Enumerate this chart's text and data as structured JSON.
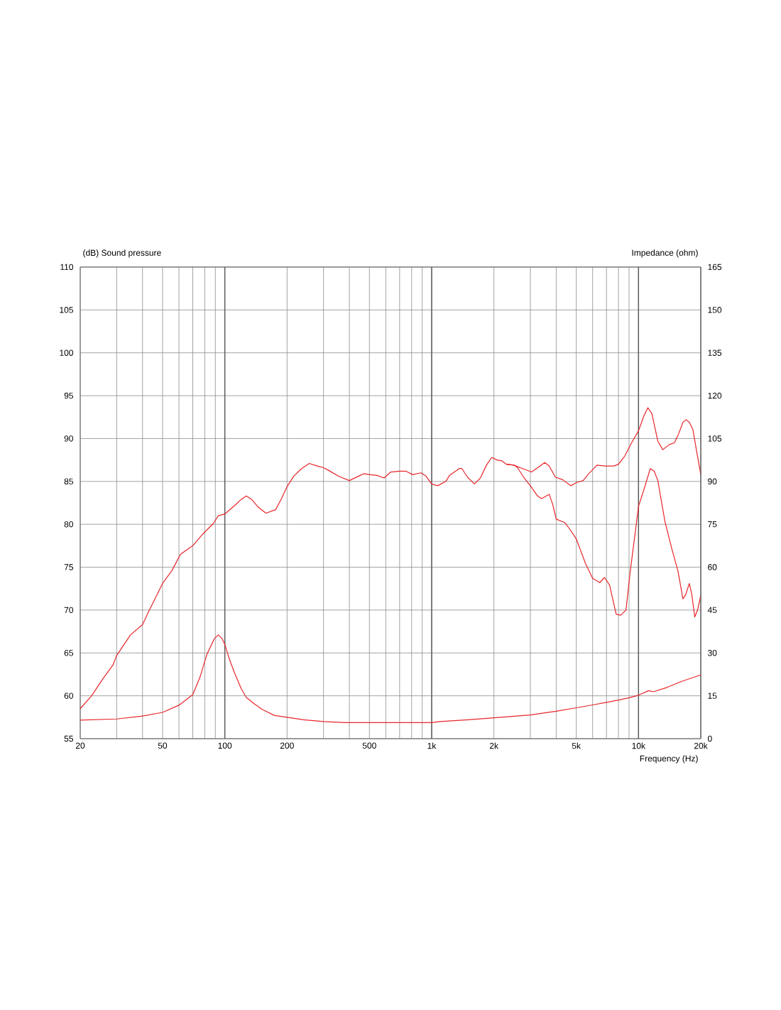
{
  "chart_data": {
    "type": "line",
    "xlabel": "Frequency (Hz)",
    "ylabel": "(dB) Sound pressure",
    "y2label": "Impedance (ohm)",
    "log": "x",
    "grid": true,
    "xlim": [
      20,
      20000
    ],
    "xticks": [
      20,
      {
        "value": 30,
        "label": null
      },
      {
        "value": 40,
        "label": null
      },
      50,
      {
        "value": 60,
        "label": null
      },
      {
        "value": 70,
        "label": null
      },
      {
        "value": 80,
        "label": null
      },
      {
        "value": 90,
        "label": null
      },
      100,
      200,
      {
        "value": 300,
        "label": null
      },
      {
        "value": 400,
        "label": null
      },
      500,
      {
        "value": 600,
        "label": null
      },
      {
        "value": 700,
        "label": null
      },
      {
        "value": 800,
        "label": null
      },
      {
        "value": 900,
        "label": null
      },
      {
        "value": 1000,
        "label": "1k"
      },
      {
        "value": 2000,
        "label": "2k"
      },
      {
        "value": 3000,
        "label": null
      },
      {
        "value": 4000,
        "label": null
      },
      {
        "value": 5000,
        "label": "5k"
      },
      {
        "value": 6000,
        "label": null
      },
      {
        "value": 7000,
        "label": null
      },
      {
        "value": 8000,
        "label": null
      },
      {
        "value": 9000,
        "label": null
      },
      {
        "value": 10000,
        "label": "10k"
      },
      {
        "value": 20000,
        "label": "20k"
      }
    ],
    "ylim": [
      55,
      110
    ],
    "yticks": [
      55,
      60,
      65,
      70,
      75,
      80,
      85,
      90,
      95,
      100,
      105,
      110
    ],
    "y2lim": [
      0,
      165
    ],
    "y2ticks": [
      0,
      15,
      30,
      45,
      60,
      75,
      90,
      105,
      120,
      135,
      150,
      165
    ],
    "series": [
      {
        "color": "#e8262a",
        "x": [
          20,
          22.7,
          25.6,
          28.8,
          30,
          35,
          40,
          43,
          50,
          55.5,
          61,
          70,
          78.5,
          88,
          93,
          100,
          114,
          120,
          127,
          135,
          145,
          158,
          176,
          188,
          200,
          215,
          235,
          256,
          280,
          300,
          317,
          355,
          400,
          469,
          500,
          544,
          589,
          634,
          700,
          750,
          808,
          888,
          940,
          1000,
          1070,
          1170,
          1220,
          1360,
          1400,
          1490,
          1610,
          1720,
          1840,
          1950,
          2070,
          2180,
          2300,
          2500,
          2750,
          3040,
          3300,
          3520,
          3700,
          3960,
          4300,
          4700,
          5050,
          5400,
          5750,
          6300,
          6900,
          7600,
          8000,
          8600,
          9200,
          10000,
          10600,
          11100,
          11600,
          12400,
          13100,
          14100,
          14900,
          15600,
          16400,
          17000,
          17600,
          18300,
          19200,
          20000
        ],
        "values": [
          58.5,
          60.0,
          61.9,
          63.6,
          64.7,
          67.1,
          68.3,
          69.9,
          73.1,
          74.6,
          76.5,
          77.5,
          78.9,
          80.1,
          81.0,
          81.2,
          82.4,
          82.9,
          83.3,
          82.9,
          82.0,
          81.3,
          81.7,
          83.0,
          84.4,
          85.6,
          86.5,
          87.1,
          86.8,
          86.6,
          86.3,
          85.6,
          85.1,
          85.9,
          85.8,
          85.7,
          85.4,
          86.1,
          86.2,
          86.2,
          85.8,
          86.0,
          85.6,
          84.7,
          84.5,
          85.0,
          85.7,
          86.5,
          86.5,
          85.5,
          84.7,
          85.4,
          86.9,
          87.8,
          87.5,
          87.4,
          87.0,
          86.9,
          86.5,
          86.1,
          86.7,
          87.2,
          86.8,
          85.5,
          85.2,
          84.5,
          84.9,
          85.1,
          85.9,
          86.9,
          86.8,
          86.8,
          87.0,
          88.0,
          89.4,
          90.9,
          92.6,
          93.6,
          92.9,
          89.7,
          88.7,
          89.3,
          89.5,
          90.5,
          91.9,
          92.2,
          91.9,
          91.1,
          88.2,
          85.8
        ]
      },
      {
        "color": "#e8262a",
        "x": [
          2300,
          2500,
          2600,
          2800,
          3000,
          3250,
          3400,
          3700,
          3850,
          4000,
          4400,
          4600,
          5000,
          5550,
          6000,
          6500,
          6850,
          7250,
          7800,
          8200,
          8700,
          9100,
          10000,
          10700,
          11400,
          11900,
          12400,
          13400,
          14500,
          15500,
          16400,
          16900,
          17600,
          18100,
          18700,
          19300,
          20000
        ],
        "values": [
          87.0,
          86.9,
          86.6,
          85.4,
          84.5,
          83.3,
          83.0,
          83.5,
          82.3,
          80.6,
          80.2,
          79.6,
          78.3,
          75.4,
          73.7,
          73.2,
          73.8,
          72.9,
          69.5,
          69.4,
          70.0,
          74.3,
          82.1,
          84.3,
          86.5,
          86.2,
          85.1,
          80.4,
          77.1,
          74.6,
          71.3,
          71.8,
          73.1,
          71.8,
          69.2,
          70.0,
          71.7
        ]
      },
      {
        "color": "#e8262a",
        "axis": "y2",
        "x": [
          20,
          30,
          40,
          50,
          60,
          70,
          76,
          82,
          89,
          93,
          97,
          100,
          105,
          111,
          120,
          127,
          140,
          152,
          174,
          200,
          240,
          300,
          380,
          1000,
          1100,
          1500,
          2000,
          3000,
          4000,
          5000,
          6000,
          7000,
          8000,
          9000,
          10000,
          11200,
          11800,
          13800,
          16100,
          20000
        ],
        "values": [
          6.5,
          6.9,
          7.9,
          9.2,
          11.7,
          15.4,
          21.7,
          29.6,
          35.0,
          36.3,
          35.0,
          33.0,
          28.0,
          23.3,
          17.5,
          14.4,
          12.0,
          10.2,
          8.1,
          7.5,
          6.6,
          6.0,
          5.6,
          5.6,
          6.0,
          6.6,
          7.3,
          8.3,
          9.6,
          10.8,
          11.8,
          12.7,
          13.5,
          14.3,
          15.2,
          16.8,
          16.4,
          18.0,
          20.0,
          22.3
        ]
      }
    ]
  }
}
